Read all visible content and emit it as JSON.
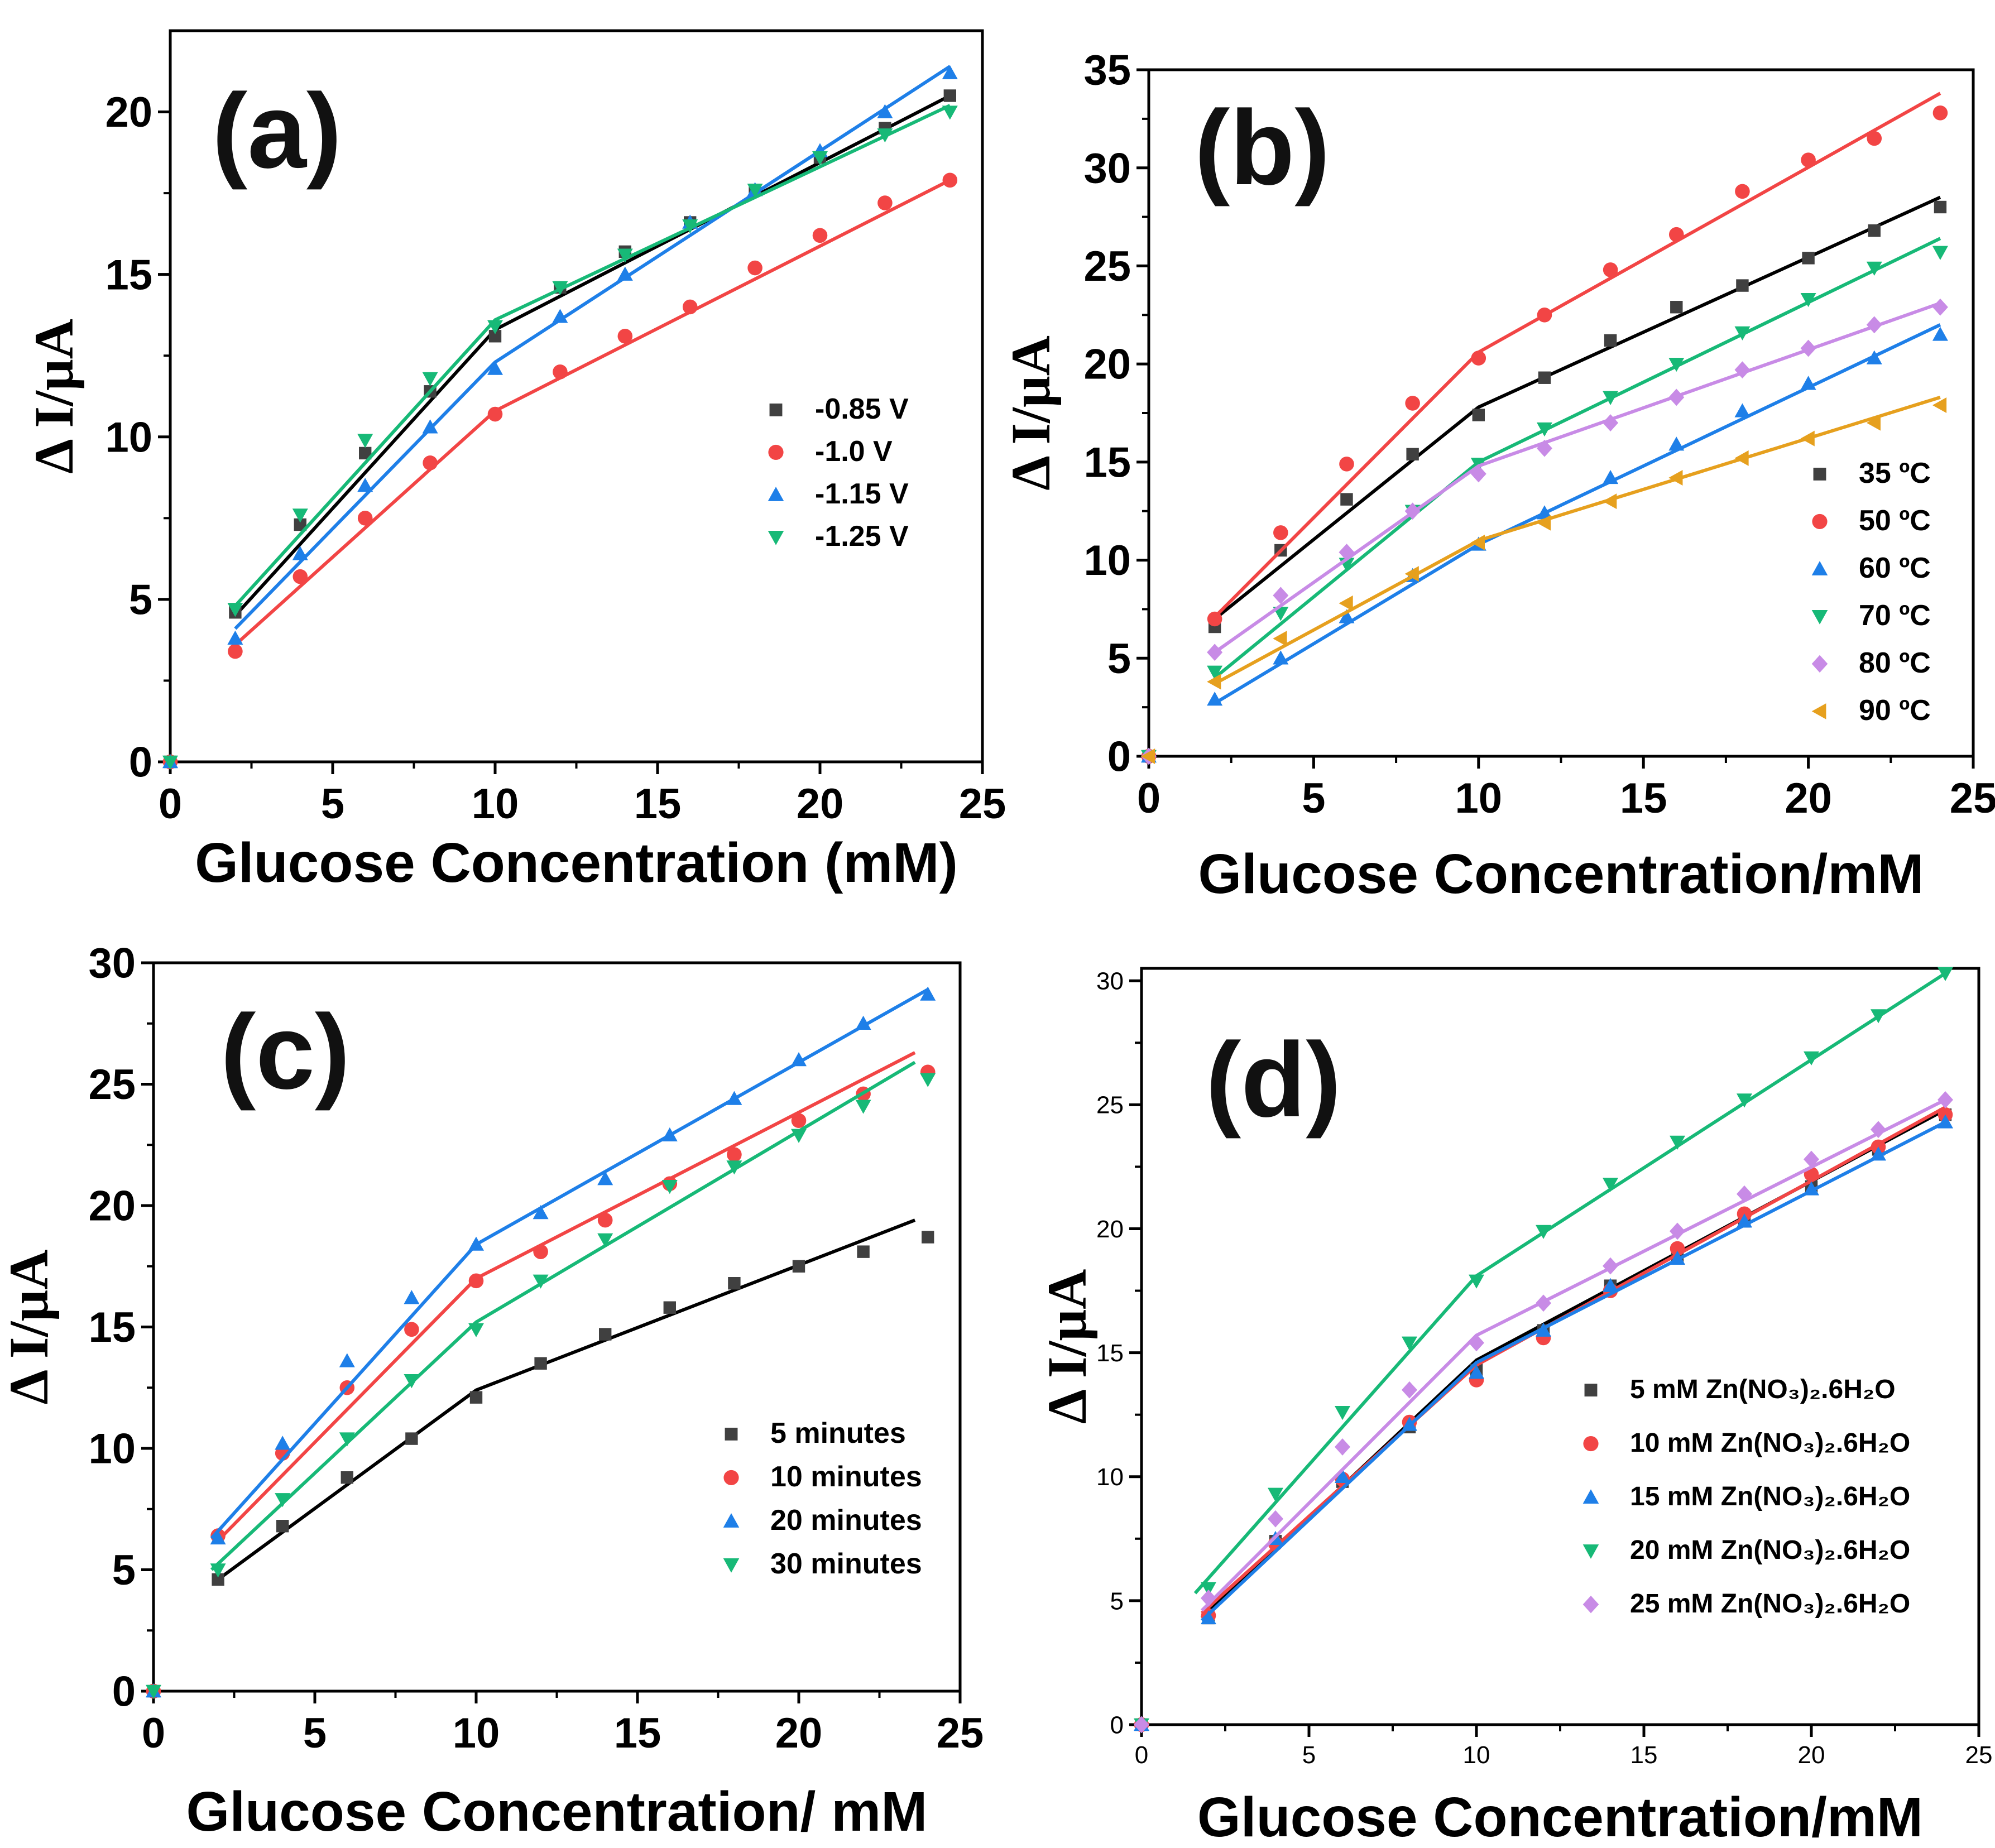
{
  "chart_data": [
    {
      "type": "line",
      "panel_label": "(a)",
      "xlabel": "Glucose Concentration (mM)",
      "ylabel": "Δ I/μA",
      "xlim": [
        0,
        25
      ],
      "ylim": [
        0,
        22.5
      ],
      "xticks": [
        "0",
        "5",
        "10",
        "15",
        "20",
        "25"
      ],
      "yticks": [
        "0",
        "5",
        "10",
        "15",
        "20"
      ],
      "legend_position": "right-middle",
      "series": [
        {
          "name": "-0.85 V",
          "color": "#404040",
          "marker": "square",
          "x": [
            0,
            2,
            4,
            6,
            8,
            10,
            12,
            14,
            16,
            18,
            20,
            22,
            24
          ],
          "y": [
            0,
            4.6,
            7.3,
            9.5,
            11.4,
            13.1,
            14.6,
            15.7,
            16.6,
            17.6,
            18.6,
            19.5,
            20.5
          ],
          "fit": [
            [
              2,
              4.5
            ],
            [
              10,
              13.3
            ],
            [
              24,
              20.5
            ]
          ]
        },
        {
          "name": "-1.0 V",
          "color": "#f24545",
          "marker": "circle",
          "x": [
            0,
            2,
            4,
            6,
            8,
            10,
            12,
            14,
            16,
            18,
            20,
            22,
            24
          ],
          "y": [
            0,
            3.4,
            5.7,
            7.5,
            9.2,
            10.7,
            12.0,
            13.1,
            14.0,
            15.2,
            16.2,
            17.2,
            17.9
          ],
          "fit": [
            [
              2,
              3.6
            ],
            [
              10,
              10.8
            ],
            [
              24,
              17.9
            ]
          ]
        },
        {
          "name": "-1.15 V",
          "color": "#1e7fe8",
          "marker": "triangle-up",
          "x": [
            0,
            2,
            4,
            6,
            8,
            10,
            12,
            14,
            16,
            18,
            20,
            22,
            24
          ],
          "y": [
            0,
            3.8,
            6.4,
            8.5,
            10.3,
            12.1,
            13.7,
            15.0,
            16.6,
            17.6,
            18.8,
            20.0,
            21.2
          ],
          "fit": [
            [
              2,
              4.1
            ],
            [
              10,
              12.3
            ],
            [
              24,
              21.4
            ]
          ]
        },
        {
          "name": "-1.25 V",
          "color": "#17b977",
          "marker": "triangle-down",
          "x": [
            0,
            2,
            4,
            6,
            8,
            10,
            12,
            14,
            16,
            18,
            20,
            22,
            24
          ],
          "y": [
            0,
            4.7,
            7.6,
            9.9,
            11.8,
            13.4,
            14.6,
            15.6,
            16.5,
            17.6,
            18.6,
            19.3,
            20.0
          ],
          "fit": [
            [
              2,
              4.8
            ],
            [
              10,
              13.6
            ],
            [
              24,
              20.2
            ]
          ]
        }
      ]
    },
    {
      "type": "line",
      "panel_label": "(b)",
      "xlabel": "Glucose Concentration/mM",
      "ylabel": "Δ I/μA",
      "xlim": [
        0,
        25
      ],
      "ylim": [
        0,
        35
      ],
      "xticks": [
        "0",
        "5",
        "10",
        "15",
        "20",
        "25"
      ],
      "yticks": [
        "0",
        "5",
        "10",
        "15",
        "20",
        "25",
        "30",
        "35"
      ],
      "legend_position": "bottom-right",
      "series": [
        {
          "name": "35 ºC",
          "color": "#404040",
          "marker": "square",
          "x": [
            0,
            2,
            4,
            6,
            8,
            10,
            12,
            14,
            16,
            18,
            20,
            22,
            24
          ],
          "y": [
            0,
            6.6,
            10.5,
            13.1,
            15.4,
            17.4,
            19.3,
            21.2,
            22.9,
            24.0,
            25.4,
            26.8,
            28.0
          ],
          "fit": [
            [
              2,
              7.0
            ],
            [
              10,
              17.8
            ],
            [
              24,
              28.5
            ]
          ]
        },
        {
          "name": "50 ºC",
          "color": "#f24545",
          "marker": "circle",
          "x": [
            0,
            2,
            4,
            6,
            8,
            10,
            12,
            14,
            16,
            18,
            20,
            22,
            24
          ],
          "y": [
            0,
            7.0,
            11.4,
            14.9,
            18.0,
            20.3,
            22.5,
            24.8,
            26.6,
            28.8,
            30.4,
            31.5,
            32.8
          ],
          "fit": [
            [
              2,
              7.1
            ],
            [
              10,
              20.6
            ],
            [
              24,
              33.8
            ]
          ]
        },
        {
          "name": "60 ºC",
          "color": "#1e7fe8",
          "marker": "triangle-up",
          "x": [
            0,
            2,
            4,
            6,
            8,
            10,
            12,
            14,
            16,
            18,
            20,
            22,
            24
          ],
          "y": [
            0,
            2.9,
            5.0,
            7.1,
            9.2,
            10.8,
            12.4,
            14.2,
            15.9,
            17.6,
            19.0,
            20.3,
            21.5
          ],
          "fit": [
            [
              2,
              2.7
            ],
            [
              10,
              10.8
            ],
            [
              24,
              22.0
            ]
          ]
        },
        {
          "name": "70 ºC",
          "color": "#17b977",
          "marker": "triangle-down",
          "x": [
            0,
            2,
            4,
            6,
            8,
            10,
            12,
            14,
            16,
            18,
            20,
            22,
            24
          ],
          "y": [
            0,
            4.3,
            7.3,
            9.8,
            12.5,
            14.9,
            16.7,
            18.3,
            20.0,
            21.6,
            23.3,
            24.9,
            25.7
          ],
          "fit": [
            [
              2,
              4.0
            ],
            [
              10,
              15.0
            ],
            [
              24,
              26.4
            ]
          ]
        },
        {
          "name": "80 ºC",
          "color": "#c88be6",
          "marker": "diamond",
          "x": [
            0,
            2,
            4,
            6,
            8,
            10,
            12,
            14,
            16,
            18,
            20,
            22,
            24
          ],
          "y": [
            0,
            5.3,
            8.2,
            10.4,
            12.5,
            14.4,
            15.7,
            17.0,
            18.3,
            19.7,
            20.8,
            22.0,
            22.9
          ],
          "fit": [
            [
              2,
              5.3
            ],
            [
              10,
              14.8
            ],
            [
              24,
              23.1
            ]
          ]
        },
        {
          "name": "90 ºC",
          "color": "#e6a01e",
          "marker": "triangle-left",
          "x": [
            0,
            2,
            4,
            6,
            8,
            10,
            12,
            14,
            16,
            18,
            20,
            22,
            24
          ],
          "y": [
            0,
            3.8,
            6.0,
            7.8,
            9.3,
            10.9,
            11.9,
            13.0,
            14.2,
            15.2,
            16.2,
            17.0,
            17.9
          ],
          "fit": [
            [
              2,
              3.7
            ],
            [
              10,
              11.0
            ],
            [
              24,
              18.3
            ]
          ]
        }
      ]
    },
    {
      "type": "line",
      "panel_label": "(c)",
      "xlabel": "Glucose Concentration/ mM",
      "ylabel": "Δ I/μA",
      "xlim": [
        0,
        25
      ],
      "ylim": [
        0,
        30
      ],
      "xticks": [
        "0",
        "5",
        "10",
        "15",
        "20",
        "25"
      ],
      "yticks": [
        "0",
        "5",
        "10",
        "15",
        "20",
        "25",
        "30"
      ],
      "legend_position": "right-middle",
      "series": [
        {
          "name": "5 minutes",
          "color": "#404040",
          "marker": "square",
          "x": [
            0,
            2,
            4,
            6,
            8,
            10,
            12,
            14,
            16,
            18,
            20,
            22,
            24
          ],
          "y": [
            0,
            4.6,
            6.8,
            8.8,
            10.4,
            12.1,
            13.5,
            14.7,
            15.8,
            16.8,
            17.5,
            18.1,
            18.7
          ],
          "fit": [
            [
              2,
              4.6
            ],
            [
              10,
              12.4
            ],
            [
              23.6,
              19.4
            ]
          ]
        },
        {
          "name": "10 minutes",
          "color": "#f24545",
          "marker": "circle",
          "x": [
            0,
            2,
            4,
            6,
            8,
            10,
            12,
            14,
            16,
            18,
            20,
            22,
            24
          ],
          "y": [
            0,
            6.4,
            9.8,
            12.5,
            14.9,
            16.9,
            18.1,
            19.4,
            20.9,
            22.1,
            23.5,
            24.6,
            25.5
          ],
          "fit": [
            [
              2,
              6.2
            ],
            [
              10,
              17.0
            ],
            [
              23.6,
              26.3
            ]
          ]
        },
        {
          "name": "20 minutes",
          "color": "#1e7fe8",
          "marker": "triangle-up",
          "x": [
            0,
            2,
            4,
            6,
            8,
            10,
            12,
            14,
            16,
            18,
            20,
            22,
            24
          ],
          "y": [
            0,
            6.3,
            10.2,
            13.6,
            16.2,
            18.4,
            19.7,
            21.1,
            22.9,
            24.4,
            26.0,
            27.5,
            28.7
          ],
          "fit": [
            [
              1.8,
              6.3
            ],
            [
              10,
              18.4
            ],
            [
              24,
              28.9
            ]
          ]
        },
        {
          "name": "30 minutes",
          "color": "#17b977",
          "marker": "triangle-down",
          "x": [
            0,
            2,
            4,
            6,
            8,
            10,
            12,
            14,
            16,
            18,
            20,
            22,
            24
          ],
          "y": [
            0,
            5.0,
            7.9,
            10.4,
            12.8,
            14.9,
            16.9,
            18.6,
            20.8,
            21.6,
            22.9,
            24.1,
            25.2
          ],
          "fit": [
            [
              1.8,
              5.0
            ],
            [
              10,
              15.2
            ],
            [
              23.6,
              25.9
            ]
          ]
        }
      ]
    },
    {
      "type": "line",
      "panel_label": "(d)",
      "xlabel": "Glucose Concentration/mM",
      "ylabel": "Δ I/μA",
      "xlim": [
        0,
        25
      ],
      "ylim": [
        0,
        30.5
      ],
      "xticks": [
        "0",
        "5",
        "10",
        "15",
        "20",
        "25"
      ],
      "yticks": [
        "0",
        "5",
        "10",
        "15",
        "20",
        "25",
        "30"
      ],
      "legend_position": "bottom-right",
      "series": [
        {
          "name": "5   mM Zn(NO₃)₂.6H₂O",
          "color": "#404040",
          "marker": "square",
          "x": [
            0,
            2,
            4,
            6,
            8,
            10,
            12,
            14,
            16,
            18,
            20,
            22,
            24
          ],
          "y": [
            0,
            4.3,
            7.4,
            9.8,
            12.0,
            14.3,
            15.9,
            17.7,
            18.9,
            20.3,
            21.7,
            23.2,
            24.6
          ],
          "fit": [
            [
              1.8,
              4.3
            ],
            [
              10,
              14.7
            ],
            [
              24,
              24.8
            ]
          ]
        },
        {
          "name": "10 mM Zn(NO₃)₂.6H₂O",
          "color": "#f24545",
          "marker": "circle",
          "x": [
            0,
            2,
            4,
            6,
            8,
            10,
            12,
            14,
            16,
            18,
            20,
            22,
            24
          ],
          "y": [
            0,
            4.4,
            7.3,
            9.9,
            12.2,
            13.9,
            15.6,
            17.5,
            19.2,
            20.6,
            22.2,
            23.3,
            24.6
          ],
          "fit": [
            [
              1.8,
              4.5
            ],
            [
              10,
              14.5
            ],
            [
              24,
              24.9
            ]
          ]
        },
        {
          "name": "15 mM Zn(NO₃)₂.6H₂O",
          "color": "#1e7fe8",
          "marker": "triangle-up",
          "x": [
            0,
            2,
            4,
            6,
            8,
            10,
            12,
            14,
            16,
            18,
            20,
            22,
            24
          ],
          "y": [
            0,
            4.3,
            7.5,
            10.0,
            12.1,
            14.2,
            15.9,
            17.7,
            18.8,
            20.3,
            21.6,
            23.0,
            24.3
          ],
          "fit": [
            [
              1.8,
              4.2
            ],
            [
              10,
              14.6
            ],
            [
              24,
              24.3
            ]
          ]
        },
        {
          "name": "20 mM Zn(NO₃)₂.6H₂O",
          "color": "#17b977",
          "marker": "triangle-down",
          "x": [
            0,
            2,
            4,
            6,
            8,
            10,
            12,
            14,
            16,
            18,
            20,
            22,
            24
          ],
          "y": [
            0,
            5.5,
            9.3,
            12.6,
            15.4,
            17.9,
            19.9,
            21.8,
            23.5,
            25.2,
            26.9,
            28.6,
            30.3
          ],
          "fit": [
            [
              1.6,
              5.3
            ],
            [
              10,
              18.1
            ],
            [
              24,
              30.3
            ]
          ]
        },
        {
          "name": "25 mM Zn(NO₃)₂.6H₂O",
          "color": "#c88be6",
          "marker": "diamond",
          "x": [
            0,
            2,
            4,
            6,
            8,
            10,
            12,
            14,
            16,
            18,
            20,
            22,
            24
          ],
          "y": [
            0,
            5.1,
            8.3,
            11.2,
            13.5,
            15.4,
            17.0,
            18.5,
            19.9,
            21.4,
            22.8,
            24.0,
            25.2
          ],
          "fit": [
            [
              1.8,
              4.6
            ],
            [
              10,
              15.7
            ],
            [
              24,
              25.2
            ]
          ]
        }
      ]
    }
  ]
}
